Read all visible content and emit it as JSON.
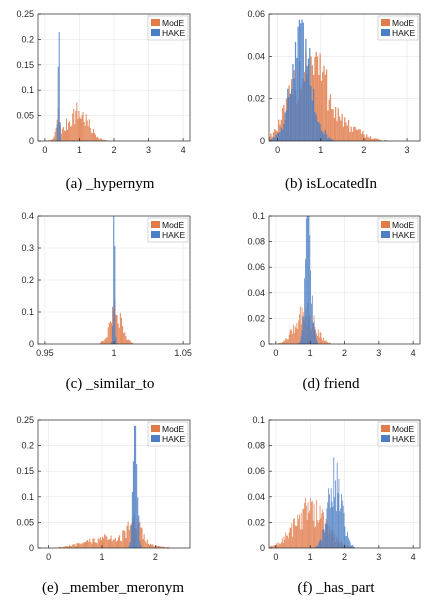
{
  "colors": {
    "mode": "#e07b4a",
    "hake": "#4c7fc4",
    "grid": "#e6e6e6",
    "axis": "#262626"
  },
  "legend": {
    "mode_label": "ModE",
    "hake_label": "HAKE"
  },
  "chart_data": [
    {
      "type": "histogram",
      "caption": "(a) _hypernym",
      "xlim": [
        -0.2,
        4.2
      ],
      "ylim": [
        0,
        0.25
      ],
      "xticks": [
        0,
        1,
        2,
        3,
        4
      ],
      "xticklabels": [
        "0",
        "1",
        "2",
        "3",
        "4"
      ],
      "yticks": [
        0,
        0.05,
        0.1,
        0.15,
        0.2,
        0.25
      ],
      "yticklabels": [
        "0",
        "0.05",
        "0.1",
        "0.15",
        "0.2",
        "0.25"
      ],
      "legend_position": "top-right",
      "grid": true,
      "bin_width": 0.03,
      "series": [
        {
          "name": "ModE",
          "color_key": "mode",
          "peaks": [
            {
              "x": 0.38,
              "sigma": 0.05,
              "h": 0.04
            },
            {
              "x": 0.95,
              "sigma": 0.3,
              "h": 0.055
            }
          ]
        },
        {
          "name": "HAKE",
          "color_key": "hake",
          "peaks": [
            {
              "x": 0.4,
              "sigma": 0.022,
              "h": 0.215
            }
          ]
        }
      ]
    },
    {
      "type": "histogram",
      "caption": "(b) isLocatedIn",
      "xlim": [
        -0.2,
        3.3
      ],
      "ylim": [
        0,
        0.06
      ],
      "xticks": [
        0,
        1,
        2,
        3
      ],
      "xticklabels": [
        "0",
        "1",
        "2",
        "3"
      ],
      "yticks": [
        0,
        0.02,
        0.04,
        0.06
      ],
      "yticklabels": [
        "0",
        "0.02",
        "0.04",
        "0.06"
      ],
      "legend_position": "top-right",
      "grid": true,
      "bin_width": 0.03,
      "series": [
        {
          "name": "ModE",
          "color_key": "mode",
          "peaks": [
            {
              "x": 0.75,
              "sigma": 0.4,
              "h": 0.038
            },
            {
              "x": 1.7,
              "sigma": 0.35,
              "h": 0.004
            }
          ]
        },
        {
          "name": "HAKE",
          "color_key": "hake",
          "peaks": [
            {
              "x": 0.55,
              "sigma": 0.25,
              "h": 0.042
            }
          ]
        }
      ]
    },
    {
      "type": "histogram",
      "caption": "(c) _similar_to",
      "xlim": [
        0.945,
        1.055
      ],
      "ylim": [
        0,
        0.4
      ],
      "xticks": [
        0.95,
        1,
        1.05
      ],
      "xticklabels": [
        "0.95",
        "1",
        "1.05"
      ],
      "yticks": [
        0,
        0.1,
        0.2,
        0.3,
        0.4
      ],
      "yticklabels": [
        "0",
        "0.1",
        "0.2",
        "0.3",
        "0.4"
      ],
      "legend_position": "top-right",
      "grid": true,
      "bin_width": 0.0008,
      "series": [
        {
          "name": "ModE",
          "color_key": "mode",
          "peaks": [
            {
              "x": 1.0015,
              "sigma": 0.0045,
              "h": 0.1
            }
          ]
        },
        {
          "name": "HAKE",
          "color_key": "hake",
          "peaks": [
            {
              "x": 1.0,
              "sigma": 0.0006,
              "h": 0.41
            }
          ]
        }
      ]
    },
    {
      "type": "histogram",
      "caption": "(d) friend",
      "xlim": [
        -0.2,
        4.2
      ],
      "ylim": [
        0,
        0.1
      ],
      "xticks": [
        0,
        1,
        2,
        3,
        4
      ],
      "xticklabels": [
        "0",
        "1",
        "2",
        "3",
        "4"
      ],
      "yticks": [
        0,
        0.02,
        0.04,
        0.06,
        0.08,
        0.1
      ],
      "yticklabels": [
        "0",
        "0.02",
        "0.04",
        "0.06",
        "0.08",
        "0.1"
      ],
      "legend_position": "top-right",
      "grid": true,
      "bin_width": 0.025,
      "series": [
        {
          "name": "ModE",
          "color_key": "mode",
          "peaks": [
            {
              "x": 0.85,
              "sigma": 0.28,
              "h": 0.025
            }
          ]
        },
        {
          "name": "HAKE",
          "color_key": "hake",
          "peaks": [
            {
              "x": 0.95,
              "sigma": 0.09,
              "h": 0.09
            }
          ]
        }
      ]
    },
    {
      "type": "histogram",
      "caption": "(e) _member_meronym",
      "xlim": [
        -0.2,
        2.65
      ],
      "ylim": [
        0,
        0.25
      ],
      "xticks": [
        0,
        1,
        2
      ],
      "xticklabels": [
        "0",
        "1",
        "2"
      ],
      "yticks": [
        0,
        0.05,
        0.1,
        0.15,
        0.2,
        0.25
      ],
      "yticklabels": [
        "0",
        "0.05",
        "0.1",
        "0.15",
        "0.2",
        "0.25"
      ],
      "legend_position": "top-right",
      "grid": true,
      "bin_width": 0.02,
      "series": [
        {
          "name": "ModE",
          "color_key": "mode",
          "peaks": [
            {
              "x": 1.2,
              "sigma": 0.45,
              "h": 0.02
            },
            {
              "x": 1.62,
              "sigma": 0.12,
              "h": 0.035
            }
          ]
        },
        {
          "name": "HAKE",
          "color_key": "hake",
          "peaks": [
            {
              "x": 1.62,
              "sigma": 0.04,
              "h": 0.215
            }
          ]
        }
      ]
    },
    {
      "type": "histogram",
      "caption": "(f) _has_part",
      "xlim": [
        -0.2,
        4.2
      ],
      "ylim": [
        0,
        0.1
      ],
      "xticks": [
        0,
        1,
        2,
        3,
        4
      ],
      "xticklabels": [
        "0",
        "1",
        "2",
        "3",
        "4"
      ],
      "yticks": [
        0,
        0.02,
        0.04,
        0.06,
        0.08,
        0.1
      ],
      "yticklabels": [
        "0",
        "0.02",
        "0.04",
        "0.06",
        "0.08",
        "0.1"
      ],
      "legend_position": "top-right",
      "grid": true,
      "bin_width": 0.025,
      "series": [
        {
          "name": "ModE",
          "color_key": "mode",
          "peaks": [
            {
              "x": 1.0,
              "sigma": 0.45,
              "h": 0.03
            }
          ]
        },
        {
          "name": "HAKE",
          "color_key": "hake",
          "peaks": [
            {
              "x": 1.72,
              "sigma": 0.2,
              "h": 0.05
            }
          ]
        }
      ]
    }
  ]
}
